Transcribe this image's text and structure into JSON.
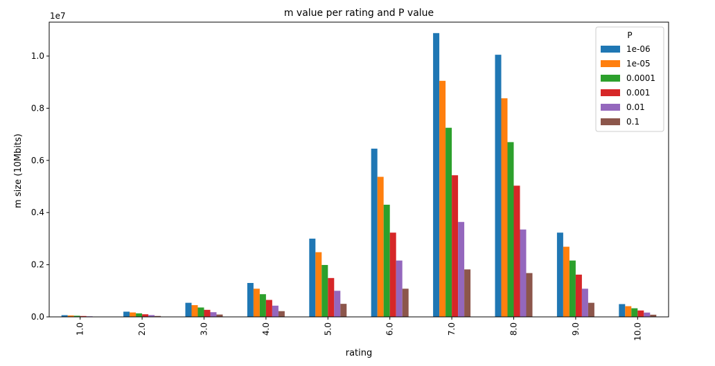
{
  "chart_data": {
    "type": "bar",
    "title": "m value per rating and P value",
    "xlabel": "rating",
    "ylabel": "m size (10Mbits)",
    "y_multiplier_label": "1e7",
    "categories": [
      "1.0",
      "2.0",
      "3.0",
      "4.0",
      "5.0",
      "6.0",
      "7.0",
      "8.0",
      "9.0",
      "10.0"
    ],
    "ylim": [
      0,
      11300000
    ],
    "yticks": [
      0,
      2000000,
      4000000,
      6000000,
      8000000,
      10000000
    ],
    "ytick_labels": [
      "0.0",
      "0.2",
      "0.4",
      "0.6",
      "0.8",
      "1.0"
    ],
    "grid": false,
    "legend_title": "P",
    "legend_position": "top-right",
    "series": [
      {
        "name": "1e-06",
        "color": "#1f77b4",
        "values": [
          65000,
          200000,
          540000,
          1300000,
          3000000,
          6450000,
          10880000,
          10050000,
          3230000,
          490000
        ]
      },
      {
        "name": "1e-05",
        "color": "#ff7f0e",
        "values": [
          54000,
          170000,
          450000,
          1080000,
          2480000,
          5370000,
          9050000,
          8380000,
          2690000,
          410000
        ]
      },
      {
        "name": "0.0001",
        "color": "#2ca02c",
        "values": [
          43000,
          135000,
          360000,
          870000,
          1990000,
          4300000,
          7250000,
          6700000,
          2160000,
          330000
        ]
      },
      {
        "name": "0.001",
        "color": "#d62728",
        "values": [
          33000,
          100000,
          270000,
          650000,
          1490000,
          3230000,
          5430000,
          5030000,
          1620000,
          245000
        ]
      },
      {
        "name": "0.01",
        "color": "#9467bd",
        "values": [
          22000,
          68000,
          180000,
          430000,
          1000000,
          2160000,
          3640000,
          3350000,
          1080000,
          165000
        ]
      },
      {
        "name": "0.1",
        "color": "#8c564b",
        "values": [
          11000,
          34000,
          90000,
          220000,
          500000,
          1080000,
          1820000,
          1680000,
          540000,
          83000
        ]
      }
    ]
  }
}
